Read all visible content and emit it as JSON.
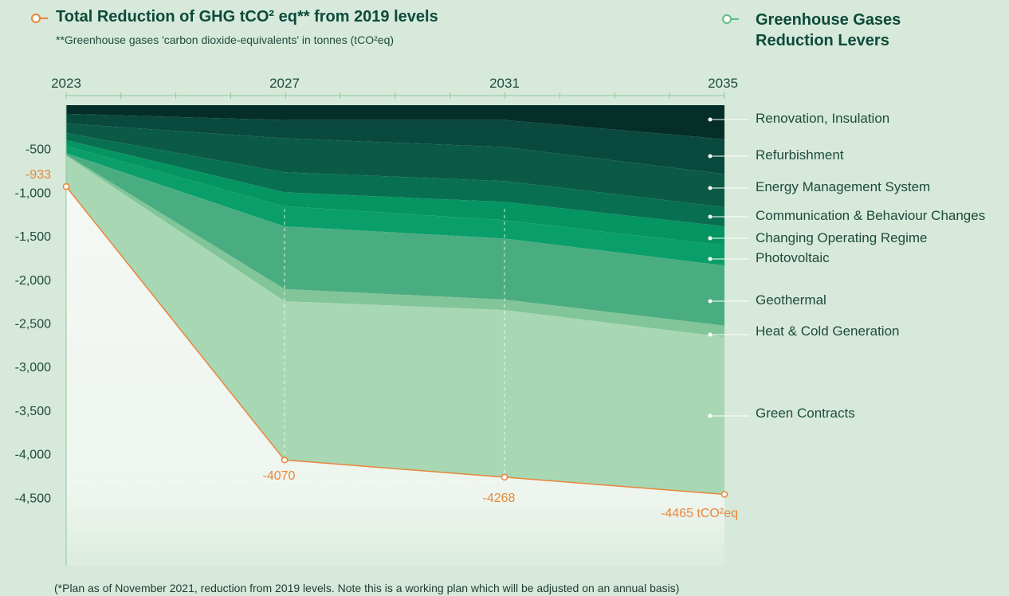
{
  "title": "Total Reduction of GHG tCO² eq** from 2019 levels",
  "subtitle": "**Greenhouse gases 'carbon dioxide-equivalents' in tonnes (tCO²eq)",
  "legend_title": "Greenhouse Gases Reduction Levers",
  "footnote": "(*Plan as of November 2021, reduction from 2019 levels. Note this is a working plan which will be adjusted on an annual basis)",
  "colors": {
    "background": "#d6e9da",
    "total_line": "#e8863a",
    "label_text": "#1f4a3e"
  },
  "chart_data": {
    "type": "area",
    "x": [
      2023,
      2027,
      2031,
      2035
    ],
    "x_tick_labels": [
      "2023",
      "2027",
      "2031",
      "2035"
    ],
    "ylim": [
      0,
      -5000
    ],
    "y_ticks": [
      -500,
      -1000,
      -1500,
      -2000,
      -2500,
      -3000,
      -3500,
      -4000,
      -4500
    ],
    "y_tick_labels": [
      "-500",
      "-1,000",
      "-1,500",
      "-2,000",
      "-2,500",
      "-3,000",
      "-3,500",
      "-4,000",
      "-4,500"
    ],
    "stacking": "cumulative_negative",
    "series": [
      {
        "name": "Renovation, Insulation",
        "color": "#062e28",
        "values": [
          -100,
          -170,
          -170,
          -390
        ]
      },
      {
        "name": "Refurbishment",
        "color": "#0a4a3e",
        "values": [
          -110,
          -210,
          -310,
          -400
        ]
      },
      {
        "name": "Energy Management System",
        "color": "#0b5a45",
        "values": [
          -110,
          -390,
          -390,
          -380
        ]
      },
      {
        "name": "Communication & Behaviour Changes",
        "color": "#087050",
        "values": [
          -80,
          -230,
          -240,
          -220
        ]
      },
      {
        "name": "Changing Operating Regime",
        "color": "#059562",
        "values": [
          -70,
          -160,
          -210,
          -220
        ]
      },
      {
        "name": "Photovoltaic",
        "color": "#0a9e6a",
        "values": [
          -80,
          -230,
          -210,
          -230
        ]
      },
      {
        "name": "Geothermal",
        "color": "#4aad82",
        "values": [
          -20,
          -720,
          -700,
          -690
        ]
      },
      {
        "name": "Heat & Cold Generation",
        "color": "#82c598",
        "values": [
          -10,
          -140,
          -120,
          -130
        ]
      },
      {
        "name": "Green Contracts",
        "color": "#a8d7b4",
        "values": [
          -353,
          -1820,
          -1918,
          -1805
        ]
      }
    ],
    "total": {
      "values": [
        -933,
        -4070,
        -4268,
        -4465
      ],
      "labels": [
        "-933",
        "-4070",
        "-4268",
        "-4465 tCO²eq"
      ]
    }
  },
  "legend_items": [
    "Renovation, Insulation",
    "Refurbishment",
    "Energy Management System",
    "Communication & Behaviour Changes",
    "Changing Operating Regime",
    "Photovoltaic",
    "Geothermal",
    "Heat & Cold Generation",
    "Green Contracts"
  ]
}
